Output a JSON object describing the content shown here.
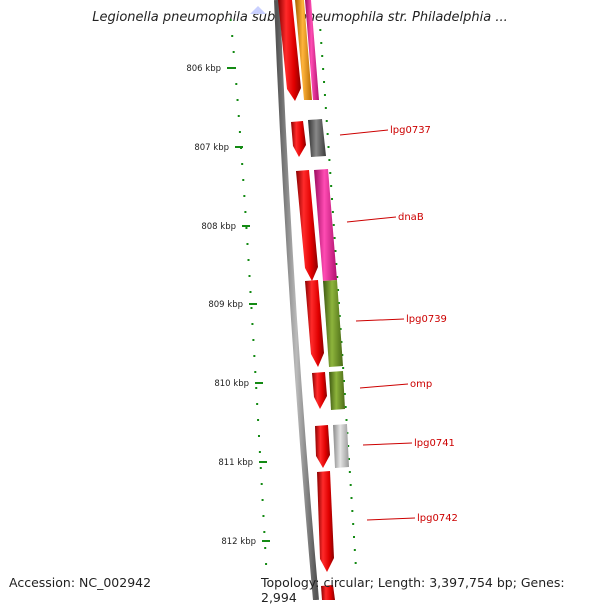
{
  "title": "Legionella pneumophila subsp. pneumophila str. Philadelphia ...",
  "footer": {
    "accession": "Accession: NC_002942",
    "summary": "Topology: circular; Length: 3,397,754 bp; Genes: 2,994"
  },
  "ruler_ticks": [
    "806 kbp",
    "807 kbp",
    "808 kbp",
    "809 kbp",
    "810 kbp",
    "811 kbp",
    "812 kbp"
  ],
  "gene_labels": [
    "lpg0737",
    "dnaB",
    "lpg0739",
    "omp",
    "lpg0741",
    "lpg0742"
  ],
  "colors": {
    "strand": "#e00000",
    "category_magenta": "#e8158f",
    "category_orange": "#f39200",
    "category_darkgray": "#555555",
    "category_olive": "#6b8e23",
    "category_lightgray": "#bbbbbb",
    "label": "#cc0000",
    "ruler": "#138a13",
    "backbone": "#808080"
  }
}
